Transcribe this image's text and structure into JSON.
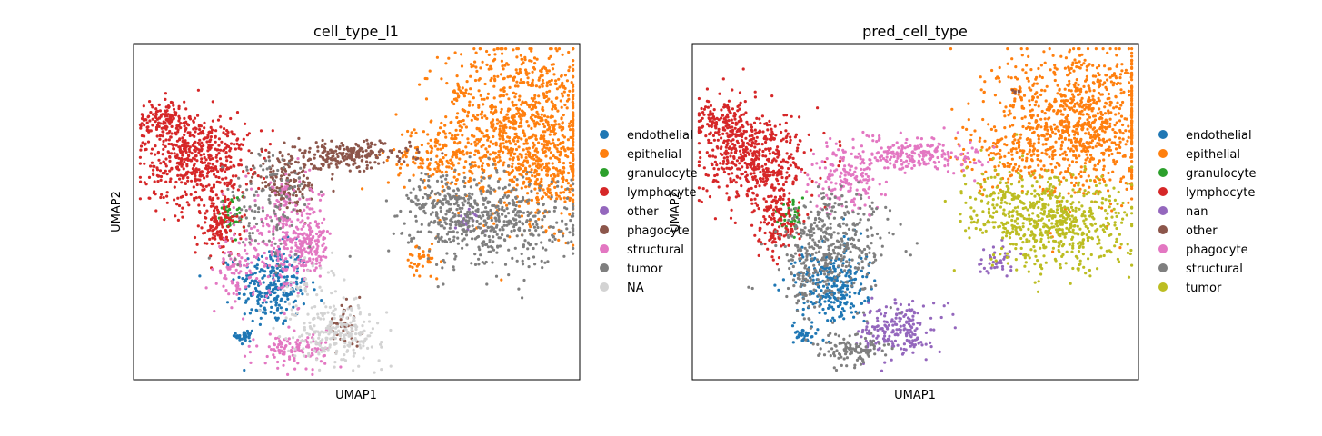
{
  "chart_data": [
    {
      "type": "scatter",
      "title": "cell_type_l1",
      "xlabel": "UMAP1",
      "ylabel": "UMAP2",
      "grid": false,
      "ticks_shown": false,
      "legend_placement": "right-outside",
      "legend": [
        {
          "name": "endothelial",
          "color": "#1f77b4"
        },
        {
          "name": "epithelial",
          "color": "#ff7f0e"
        },
        {
          "name": "granulocyte",
          "color": "#2ca02c"
        },
        {
          "name": "lymphocyte",
          "color": "#d62728"
        },
        {
          "name": "other",
          "color": "#9467bd"
        },
        {
          "name": "phagocyte",
          "color": "#8c564b"
        },
        {
          "name": "structural",
          "color": "#e377c2"
        },
        {
          "name": "tumor",
          "color": "#7f7f7f"
        },
        {
          "name": "NA",
          "color": "#d3d3d3"
        }
      ],
      "series": [
        {
          "name": "endothelial",
          "clusters": [
            {
              "cx": 0.31,
              "cy": 0.28,
              "sx": 0.04,
              "sy": 0.06,
              "n": 260
            },
            {
              "cx": 0.25,
              "cy": 0.13,
              "sx": 0.01,
              "sy": 0.015,
              "n": 30
            }
          ]
        },
        {
          "name": "epithelial",
          "clusters": [
            {
              "cx": 0.87,
              "cy": 0.76,
              "sx": 0.09,
              "sy": 0.12,
              "n": 900
            },
            {
              "cx": 0.93,
              "cy": 0.62,
              "sx": 0.05,
              "sy": 0.08,
              "n": 200
            },
            {
              "cx": 0.69,
              "cy": 0.66,
              "sx": 0.06,
              "sy": 0.05,
              "n": 160
            },
            {
              "cx": 0.65,
              "cy": 0.35,
              "sx": 0.02,
              "sy": 0.03,
              "n": 40
            },
            {
              "cx": 0.73,
              "cy": 0.86,
              "sx": 0.01,
              "sy": 0.015,
              "n": 15
            }
          ]
        },
        {
          "name": "granulocyte",
          "clusters": [
            {
              "cx": 0.22,
              "cy": 0.49,
              "sx": 0.015,
              "sy": 0.03,
              "n": 40
            }
          ]
        },
        {
          "name": "lymphocyte",
          "clusters": [
            {
              "cx": 0.14,
              "cy": 0.66,
              "sx": 0.06,
              "sy": 0.07,
              "n": 520
            },
            {
              "cx": 0.07,
              "cy": 0.77,
              "sx": 0.03,
              "sy": 0.03,
              "n": 120
            },
            {
              "cx": 0.19,
              "cy": 0.46,
              "sx": 0.025,
              "sy": 0.05,
              "n": 140
            }
          ]
        },
        {
          "name": "other",
          "clusters": [
            {
              "cx": 0.75,
              "cy": 0.47,
              "sx": 0.015,
              "sy": 0.02,
              "n": 20
            }
          ]
        },
        {
          "name": "phagocyte",
          "clusters": [
            {
              "cx": 0.48,
              "cy": 0.67,
              "sx": 0.07,
              "sy": 0.02,
              "n": 230
            },
            {
              "cx": 0.35,
              "cy": 0.59,
              "sx": 0.04,
              "sy": 0.04,
              "n": 150
            },
            {
              "cx": 0.47,
              "cy": 0.16,
              "sx": 0.02,
              "sy": 0.03,
              "n": 40
            }
          ]
        },
        {
          "name": "structural",
          "clusters": [
            {
              "cx": 0.35,
              "cy": 0.42,
              "sx": 0.05,
              "sy": 0.08,
              "n": 330
            },
            {
              "cx": 0.23,
              "cy": 0.32,
              "sx": 0.02,
              "sy": 0.05,
              "n": 80
            },
            {
              "cx": 0.36,
              "cy": 0.09,
              "sx": 0.04,
              "sy": 0.025,
              "n": 110
            },
            {
              "cx": 0.39,
              "cy": 0.4,
              "sx": 0.02,
              "sy": 0.03,
              "n": 60
            }
          ]
        },
        {
          "name": "tumor",
          "clusters": [
            {
              "cx": 0.81,
              "cy": 0.47,
              "sx": 0.09,
              "sy": 0.07,
              "n": 520
            },
            {
              "cx": 0.69,
              "cy": 0.52,
              "sx": 0.04,
              "sy": 0.05,
              "n": 130
            },
            {
              "cx": 0.3,
              "cy": 0.52,
              "sx": 0.05,
              "sy": 0.08,
              "n": 120
            }
          ]
        },
        {
          "name": "NA",
          "clusters": [
            {
              "cx": 0.46,
              "cy": 0.14,
              "sx": 0.05,
              "sy": 0.04,
              "n": 220
            },
            {
              "cx": 0.4,
              "cy": 0.25,
              "sx": 0.04,
              "sy": 0.06,
              "n": 60
            }
          ]
        }
      ]
    },
    {
      "type": "scatter",
      "title": "pred_cell_type",
      "xlabel": "UMAP1",
      "ylabel": "UMAP2",
      "grid": false,
      "ticks_shown": false,
      "legend_placement": "right-outside",
      "legend": [
        {
          "name": "endothelial",
          "color": "#1f77b4"
        },
        {
          "name": "epithelial",
          "color": "#ff7f0e"
        },
        {
          "name": "granulocyte",
          "color": "#2ca02c"
        },
        {
          "name": "lymphocyte",
          "color": "#d62728"
        },
        {
          "name": "nan",
          "color": "#9467bd"
        },
        {
          "name": "other",
          "color": "#8c564b"
        },
        {
          "name": "phagocyte",
          "color": "#e377c2"
        },
        {
          "name": "structural",
          "color": "#7f7f7f"
        },
        {
          "name": "tumor",
          "color": "#bcbd22"
        }
      ],
      "series": [
        {
          "name": "endothelial",
          "clusters": [
            {
              "cx": 0.31,
              "cy": 0.28,
              "sx": 0.04,
              "sy": 0.06,
              "n": 280
            },
            {
              "cx": 0.25,
              "cy": 0.13,
              "sx": 0.01,
              "sy": 0.015,
              "n": 30
            }
          ]
        },
        {
          "name": "epithelial",
          "clusters": [
            {
              "cx": 0.87,
              "cy": 0.77,
              "sx": 0.09,
              "sy": 0.11,
              "n": 950
            },
            {
              "cx": 0.69,
              "cy": 0.66,
              "sx": 0.05,
              "sy": 0.05,
              "n": 120
            },
            {
              "cx": 0.73,
              "cy": 0.86,
              "sx": 0.01,
              "sy": 0.015,
              "n": 15
            }
          ]
        },
        {
          "name": "granulocyte",
          "clusters": [
            {
              "cx": 0.22,
              "cy": 0.49,
              "sx": 0.015,
              "sy": 0.03,
              "n": 40
            }
          ]
        },
        {
          "name": "lymphocyte",
          "clusters": [
            {
              "cx": 0.14,
              "cy": 0.66,
              "sx": 0.06,
              "sy": 0.07,
              "n": 520
            },
            {
              "cx": 0.07,
              "cy": 0.77,
              "sx": 0.03,
              "sy": 0.03,
              "n": 120
            },
            {
              "cx": 0.19,
              "cy": 0.46,
              "sx": 0.025,
              "sy": 0.05,
              "n": 140
            }
          ]
        },
        {
          "name": "nan",
          "clusters": [
            {
              "cx": 0.46,
              "cy": 0.15,
              "sx": 0.04,
              "sy": 0.04,
              "n": 200
            },
            {
              "cx": 0.68,
              "cy": 0.36,
              "sx": 0.02,
              "sy": 0.025,
              "n": 40
            }
          ]
        },
        {
          "name": "other",
          "clusters": [
            {
              "cx": 0.73,
              "cy": 0.86,
              "sx": 0.008,
              "sy": 0.01,
              "n": 5
            }
          ]
        },
        {
          "name": "phagocyte",
          "clusters": [
            {
              "cx": 0.5,
              "cy": 0.67,
              "sx": 0.07,
              "sy": 0.025,
              "n": 230
            },
            {
              "cx": 0.35,
              "cy": 0.6,
              "sx": 0.04,
              "sy": 0.05,
              "n": 160
            }
          ]
        },
        {
          "name": "structural",
          "clusters": [
            {
              "cx": 0.32,
              "cy": 0.4,
              "sx": 0.06,
              "sy": 0.08,
              "n": 380
            },
            {
              "cx": 0.36,
              "cy": 0.09,
              "sx": 0.04,
              "sy": 0.025,
              "n": 110
            },
            {
              "cx": 0.25,
              "cy": 0.3,
              "sx": 0.02,
              "sy": 0.05,
              "n": 60
            }
          ]
        },
        {
          "name": "tumor",
          "clusters": [
            {
              "cx": 0.82,
              "cy": 0.46,
              "sx": 0.08,
              "sy": 0.07,
              "n": 560
            },
            {
              "cx": 0.69,
              "cy": 0.52,
              "sx": 0.035,
              "sy": 0.05,
              "n": 120
            }
          ]
        }
      ]
    }
  ]
}
